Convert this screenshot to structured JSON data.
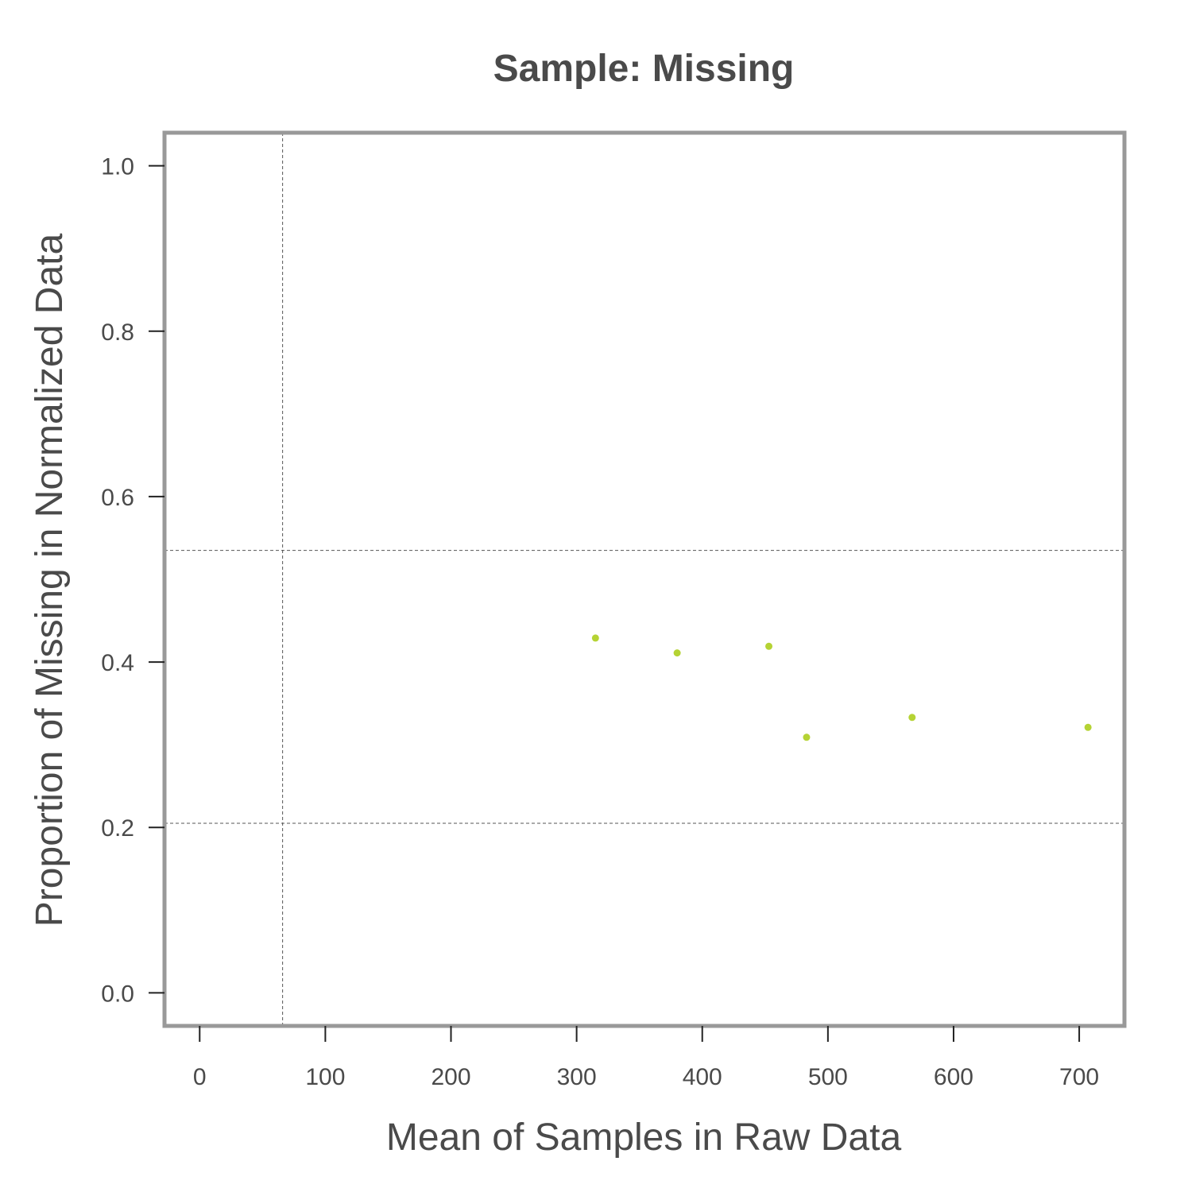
{
  "chart_data": {
    "type": "scatter",
    "title": "Sample: Missing",
    "xlabel": "Mean of Samples in Raw Data",
    "ylabel": "Proportion of Missing in Normalized Data",
    "xlim": [
      -28,
      736
    ],
    "ylim": [
      -0.04,
      1.04
    ],
    "x_ticks": [
      0,
      100,
      200,
      300,
      400,
      500,
      600,
      700
    ],
    "x_tick_labels": [
      "0",
      "100",
      "200",
      "300",
      "400",
      "500",
      "600",
      "700"
    ],
    "y_ticks": [
      0.0,
      0.2,
      0.4,
      0.6,
      0.8,
      1.0
    ],
    "y_tick_labels": [
      "0.0",
      "0.2",
      "0.4",
      "0.6",
      "0.8",
      "1.0"
    ],
    "grid": false,
    "reference_lines": {
      "vertical_x": [
        66
      ],
      "horizontal_y": [
        0.205,
        0.535
      ]
    },
    "series": [
      {
        "x": [
          315,
          380,
          453,
          483,
          567,
          707
        ],
        "y": [
          0.429,
          0.411,
          0.419,
          0.309,
          0.333,
          0.321
        ]
      }
    ],
    "colors": {
      "points": "#b5d334",
      "frame": "#999999",
      "ref_lines": "#555555",
      "text": "#4a4a4a"
    }
  }
}
